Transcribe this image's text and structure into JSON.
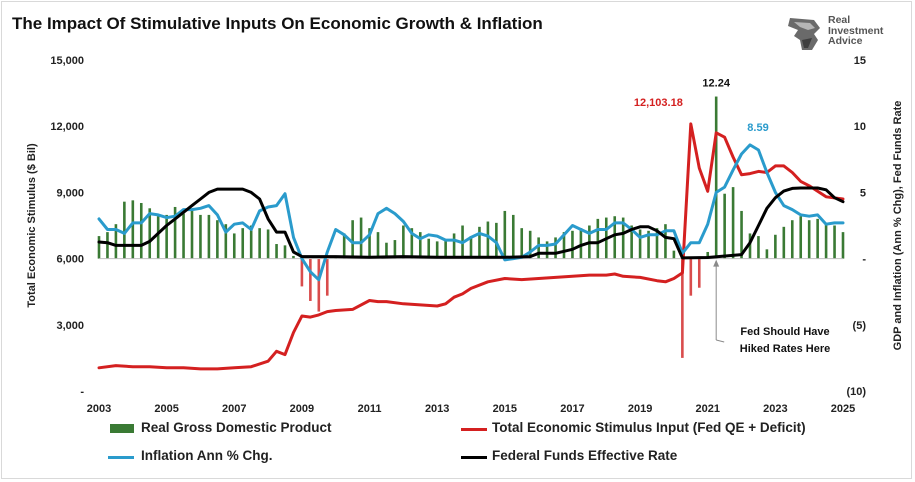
{
  "title": "The Impact Of Stimulative Inputs On Economic Growth & Inflation",
  "logo": {
    "line1": "Real",
    "line2": "Investment",
    "line3": "Advice",
    "icon": "eagle-head-icon"
  },
  "colors": {
    "gdp": "#3a7a34",
    "stimulus": "#d42020",
    "inflation": "#2a9bcc",
    "fedfunds": "#000000",
    "stimulus_bar": "#d94c4c"
  },
  "chart_data": {
    "type": "line",
    "title": "The Impact Of Stimulative Inputs On Economic Growth & Inflation",
    "x_ticks": [
      "2003",
      "2005",
      "2007",
      "2009",
      "2011",
      "2013",
      "2015",
      "2017",
      "2019",
      "2021",
      "2023",
      "2025"
    ],
    "xlim": [
      2003,
      2025
    ],
    "ylabel_left": "Total Economic Stimulus ($ Bil)",
    "ylabel_right": "GDP and Inflation (Ann % Chg), Fed Funds Rate",
    "ylim_left": [
      0,
      15000
    ],
    "ylim_right": [
      -10,
      15
    ],
    "left_ticks": [
      "15,000",
      "12,000",
      "9,000",
      "6,000",
      "3,000",
      "-"
    ],
    "right_ticks": [
      "15",
      "10",
      "5",
      "-",
      "(5)",
      "(10)"
    ],
    "grid": false,
    "series": [
      {
        "name": "Real Gross Domestic Product",
        "kind": "bar",
        "axis": "right",
        "x": [
          2003.0,
          2003.25,
          2003.5,
          2003.75,
          2004.0,
          2004.25,
          2004.5,
          2004.75,
          2005.0,
          2005.25,
          2005.5,
          2005.75,
          2006.0,
          2006.25,
          2006.5,
          2006.75,
          2007.0,
          2007.25,
          2007.5,
          2007.75,
          2008.0,
          2008.25,
          2008.5,
          2008.75,
          2009.0,
          2009.25,
          2009.5,
          2009.75,
          2010.0,
          2010.25,
          2010.5,
          2010.75,
          2011.0,
          2011.25,
          2011.5,
          2011.75,
          2012.0,
          2012.25,
          2012.5,
          2012.75,
          2013.0,
          2013.25,
          2013.5,
          2013.75,
          2014.0,
          2014.25,
          2014.5,
          2014.75,
          2015.0,
          2015.25,
          2015.5,
          2015.75,
          2016.0,
          2016.25,
          2016.5,
          2016.75,
          2017.0,
          2017.25,
          2017.5,
          2017.75,
          2018.0,
          2018.25,
          2018.5,
          2018.75,
          2019.0,
          2019.25,
          2019.5,
          2019.75,
          2020.0,
          2020.25,
          2020.5,
          2020.75,
          2021.0,
          2021.25,
          2021.5,
          2021.75,
          2022.0,
          2022.25,
          2022.5,
          2022.75,
          2023.0,
          2023.25,
          2023.5,
          2023.75,
          2024.0,
          2024.25,
          2024.5,
          2024.75,
          2025.0
        ],
        "values": [
          1.7,
          2.0,
          2.6,
          4.3,
          4.4,
          4.2,
          3.8,
          3.2,
          3.3,
          3.9,
          3.4,
          3.6,
          3.3,
          3.3,
          2.9,
          2.6,
          1.9,
          2.3,
          2.5,
          2.3,
          2.2,
          1.1,
          1.0,
          0.2,
          -2.1,
          -3.2,
          -4.0,
          -2.8,
          0.2,
          1.9,
          2.9,
          3.1,
          2.3,
          2.0,
          1.2,
          1.4,
          2.5,
          2.3,
          2.0,
          1.5,
          1.3,
          1.4,
          1.9,
          2.5,
          1.7,
          2.4,
          2.8,
          2.7,
          3.6,
          3.3,
          2.3,
          2.1,
          1.6,
          1.3,
          1.6,
          2.0,
          2.1,
          2.3,
          2.5,
          3.0,
          3.1,
          3.2,
          3.1,
          2.5,
          2.2,
          2.1,
          2.3,
          2.6,
          0.6,
          -7.5,
          -2.8,
          -2.2,
          0.5,
          12.24,
          4.9,
          5.4,
          3.6,
          1.9,
          1.7,
          0.7,
          1.8,
          2.4,
          2.9,
          3.2,
          2.9,
          3.0,
          2.7,
          2.5,
          2.0
        ]
      },
      {
        "name": "Total Economic Stimulus Input (Fed QE + Deficit)",
        "kind": "line",
        "axis": "left",
        "x": [
          2003.0,
          2003.5,
          2004.0,
          2004.5,
          2005.0,
          2005.5,
          2006.0,
          2006.5,
          2007.0,
          2007.5,
          2008.0,
          2008.25,
          2008.5,
          2008.75,
          2009.0,
          2009.25,
          2009.5,
          2009.75,
          2010.0,
          2010.5,
          2011.0,
          2011.25,
          2011.5,
          2012.0,
          2012.5,
          2013.0,
          2013.25,
          2013.5,
          2013.75,
          2014.0,
          2014.5,
          2015.0,
          2015.5,
          2016.0,
          2016.5,
          2017.0,
          2017.5,
          2018.0,
          2018.25,
          2018.5,
          2019.0,
          2019.5,
          2019.75,
          2020.0,
          2020.25,
          2020.5,
          2020.75,
          2021.0,
          2021.25,
          2021.5,
          2021.75,
          2022.0,
          2022.25,
          2022.5,
          2022.75,
          2023.0,
          2023.25,
          2023.5,
          2023.75,
          2024.0,
          2024.5,
          2025.0
        ],
        "values": [
          1050,
          1150,
          1100,
          1100,
          1050,
          1050,
          1000,
          1000,
          1050,
          1100,
          1350,
          1800,
          1650,
          2650,
          3400,
          3350,
          3450,
          3600,
          3650,
          3700,
          4100,
          4050,
          4050,
          3950,
          3900,
          3850,
          3950,
          4250,
          4400,
          4650,
          4950,
          5100,
          5050,
          5100,
          5150,
          5200,
          5250,
          5250,
          5300,
          5200,
          5150,
          5000,
          4950,
          5100,
          5350,
          12103.18,
          10100,
          9050,
          11700,
          11500,
          10600,
          9800,
          9850,
          9950,
          9900,
          10200,
          10200,
          9900,
          9500,
          9300,
          8800,
          8700
        ]
      },
      {
        "name": "Inflation Ann % Chg.",
        "kind": "line",
        "axis": "right",
        "x": [
          2003.0,
          2003.25,
          2003.5,
          2003.75,
          2004.0,
          2004.25,
          2004.5,
          2004.75,
          2005.0,
          2005.25,
          2005.5,
          2005.75,
          2006.0,
          2006.25,
          2006.5,
          2006.75,
          2007.0,
          2007.25,
          2007.5,
          2007.75,
          2008.0,
          2008.25,
          2008.5,
          2008.75,
          2009.0,
          2009.25,
          2009.5,
          2009.75,
          2010.0,
          2010.25,
          2010.5,
          2010.75,
          2011.0,
          2011.25,
          2011.5,
          2011.75,
          2012.0,
          2012.25,
          2012.5,
          2012.75,
          2013.0,
          2013.25,
          2013.5,
          2013.75,
          2014.0,
          2014.25,
          2014.5,
          2014.75,
          2015.0,
          2015.25,
          2015.5,
          2015.75,
          2016.0,
          2016.25,
          2016.5,
          2016.75,
          2017.0,
          2017.25,
          2017.5,
          2017.75,
          2018.0,
          2018.25,
          2018.5,
          2018.75,
          2019.0,
          2019.25,
          2019.5,
          2019.75,
          2020.0,
          2020.25,
          2020.5,
          2020.75,
          2021.0,
          2021.25,
          2021.5,
          2021.75,
          2022.0,
          2022.25,
          2022.5,
          2022.75,
          2023.0,
          2023.25,
          2023.5,
          2023.75,
          2024.0,
          2024.25,
          2024.5,
          2024.75,
          2025.0
        ],
        "values": [
          3.0,
          2.2,
          2.2,
          1.9,
          2.7,
          2.7,
          3.4,
          3.3,
          3.1,
          3.2,
          3.7,
          3.7,
          3.8,
          4.0,
          3.3,
          2.0,
          2.6,
          2.7,
          2.2,
          3.6,
          3.9,
          4.0,
          4.9,
          1.6,
          0.0,
          -1.0,
          -1.6,
          0.5,
          2.2,
          1.8,
          1.2,
          1.2,
          1.8,
          3.4,
          3.8,
          3.4,
          2.8,
          1.9,
          1.5,
          1.8,
          1.7,
          1.4,
          1.4,
          1.2,
          1.6,
          1.9,
          1.7,
          1.2,
          -0.1,
          0.0,
          0.1,
          0.5,
          1.0,
          1.0,
          1.1,
          1.8,
          2.5,
          2.2,
          1.9,
          2.2,
          2.2,
          2.7,
          2.7,
          2.2,
          1.6,
          1.8,
          1.8,
          2.1,
          2.1,
          0.4,
          1.2,
          1.2,
          2.6,
          5.0,
          5.4,
          6.7,
          7.9,
          8.59,
          8.2,
          6.5,
          5.0,
          4.0,
          3.7,
          3.3,
          3.2,
          3.3,
          2.6,
          2.7,
          2.7
        ]
      },
      {
        "name": "Federal Funds Effective Rate",
        "kind": "line",
        "axis": "right",
        "x": [
          2003.0,
          2003.25,
          2003.5,
          2003.75,
          2004.0,
          2004.25,
          2004.5,
          2004.75,
          2005.0,
          2005.25,
          2005.5,
          2005.75,
          2006.0,
          2006.25,
          2006.5,
          2006.75,
          2007.0,
          2007.25,
          2007.5,
          2007.75,
          2008.0,
          2008.25,
          2008.5,
          2008.75,
          2009.0,
          2010.0,
          2011.0,
          2012.0,
          2013.0,
          2014.0,
          2015.0,
          2015.75,
          2016.0,
          2016.5,
          2017.0,
          2017.25,
          2017.5,
          2017.75,
          2018.0,
          2018.25,
          2018.5,
          2018.75,
          2019.0,
          2019.25,
          2019.5,
          2019.75,
          2020.0,
          2020.25,
          2021.0,
          2022.0,
          2022.25,
          2022.5,
          2022.75,
          2023.0,
          2023.25,
          2023.5,
          2023.75,
          2024.0,
          2024.25,
          2024.5,
          2024.75,
          2025.0
        ],
        "values": [
          1.25,
          1.2,
          1.0,
          1.0,
          1.0,
          1.0,
          1.3,
          1.9,
          2.5,
          3.0,
          3.5,
          4.0,
          4.5,
          5.0,
          5.25,
          5.25,
          5.25,
          5.25,
          5.0,
          4.5,
          3.0,
          2.0,
          2.0,
          0.5,
          0.15,
          0.15,
          0.1,
          0.15,
          0.1,
          0.1,
          0.1,
          0.15,
          0.4,
          0.4,
          0.7,
          1.0,
          1.2,
          1.2,
          1.5,
          1.8,
          1.9,
          2.2,
          2.4,
          2.4,
          2.1,
          1.6,
          1.5,
          0.05,
          0.08,
          0.3,
          1.2,
          2.5,
          3.8,
          4.6,
          5.1,
          5.3,
          5.33,
          5.33,
          5.33,
          5.2,
          4.6,
          4.3
        ]
      }
    ],
    "annotations": [
      {
        "text": "12,103.18",
        "color": "#d42020",
        "x": 2020.5,
        "y_left": 12103.18
      },
      {
        "text": "12.24",
        "color": "#111111",
        "x": 2021.25,
        "y_right": 12.24
      },
      {
        "text": "8.59",
        "color": "#2a9bcc",
        "x": 2022.25,
        "y_right": 8.59
      },
      {
        "text_line1": "Fed Should Have",
        "text_line2": "Hiked Rates Here",
        "color": "#111111",
        "arrow_to_x": 2021.25
      }
    ],
    "legend": {
      "position": "bottom",
      "gdp": "Real Gross Domestic Product",
      "stimulus": "Total Economic Stimulus Input (Fed QE + Deficit)",
      "inflation": "Inflation Ann % Chg.",
      "fedfunds": "Federal Funds Effective Rate"
    }
  }
}
